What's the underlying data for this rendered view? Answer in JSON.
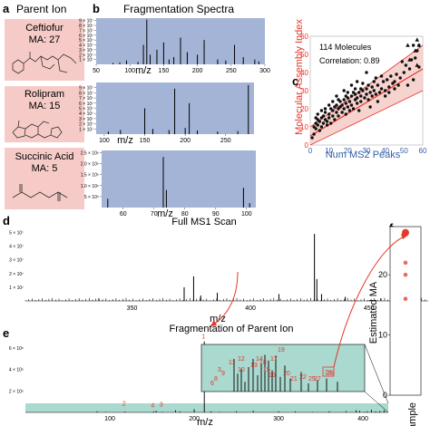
{
  "panel_letters": {
    "a": "a",
    "b": "b",
    "c": "c",
    "d": "d",
    "e": "e",
    "f": "f"
  },
  "panel_a": {
    "title": "Parent Ion",
    "molecules": [
      {
        "name": "Ceftiofur",
        "ma": "MA: 27"
      },
      {
        "name": "Rolipram",
        "ma": "MA: 15"
      },
      {
        "name": "Succinic Acid",
        "ma": "MA: 5"
      }
    ]
  },
  "panel_b": {
    "title": "Fragmentation Spectra",
    "xlabel": "m/z",
    "charts": [
      {
        "id": "ceftiofur",
        "yticks": [
          "1 × 10⁷",
          "2 × 10⁷",
          "3 × 10⁷",
          "4 × 10⁷",
          "5 × 10⁷",
          "6 × 10⁷",
          "7 × 10⁷",
          "8 × 10⁷",
          "9 × 10⁷"
        ],
        "xticks": [
          "50",
          "100",
          "150",
          "200",
          "250",
          "300"
        ]
      },
      {
        "id": "rolipram",
        "yticks": [
          "1 × 10⁷",
          "2 × 10⁷",
          "3 × 10⁷",
          "4 × 10⁷",
          "5 × 10⁷",
          "6 × 10⁷",
          "7 × 10⁷",
          "8 × 10⁷",
          "9 × 10⁷"
        ],
        "xticks": [
          "100",
          "150",
          "200",
          "250"
        ]
      },
      {
        "id": "succinic",
        "yticks": [
          "5 × 10⁵",
          "1.0 × 10⁶",
          "1.5 × 10⁶",
          "2.0 × 10⁶",
          "2.5 × 10⁶"
        ],
        "xticks": [
          "60",
          "70",
          "80",
          "90",
          "100"
        ]
      }
    ]
  },
  "panel_c": {
    "annotation_count": "114 Molecules",
    "annotation_corr": "Correlation:  0.89",
    "xticks": [
      "0",
      "10",
      "20",
      "30",
      "40",
      "50",
      "60"
    ],
    "yticks": [
      "0",
      "10",
      "20",
      "30",
      "40",
      "50",
      "60"
    ]
  },
  "panel_d": {
    "title": "Full MS1 Scan",
    "xlabel": "m/z",
    "yticks": [
      "1 × 10⁷",
      "2 × 10⁷",
      "3 × 10⁷",
      "4 × 10⁷",
      "5 × 10⁷"
    ],
    "xticks": [
      "350",
      "400",
      "450"
    ]
  },
  "panel_e": {
    "title": "Fragmentation of Parent Ion",
    "xlabel": "m/z",
    "yticks": [
      "2 × 10⁵",
      "4 × 10⁵",
      "6 × 10⁵"
    ],
    "xticks": [
      "100",
      "200",
      "300",
      "400"
    ]
  },
  "panel_f": {
    "ylabel": "Estimated MA",
    "xlabel": "Sample",
    "yticks": [
      "0",
      "10",
      "20"
    ]
  },
  "colors": {
    "spectrum_bg": "#a4b4d6",
    "accent_red": "#e8362a",
    "pink_box": "#f6cbc7",
    "teal_band": "#a9d9cf"
  },
  "chart_data": [
    {
      "type": "bar",
      "name": "Ceftiofur fragmentation spectrum",
      "xlim": [
        50,
        300
      ],
      "x": [
        75,
        85,
        95,
        112,
        120,
        125,
        130,
        140,
        150,
        158,
        165,
        175,
        185,
        200,
        210,
        230,
        242,
        255,
        268,
        285,
        291
      ],
      "values": [
        0.3,
        0.4,
        0.8,
        0.5,
        4.0,
        9.2,
        2.0,
        3.0,
        4.5,
        1.0,
        1.5,
        5.5,
        2.5,
        2.0,
        5.0,
        1.0,
        0.8,
        4.0,
        1.5,
        1.0,
        0.6
      ]
    },
    {
      "type": "bar",
      "name": "Rolipram fragmentation spectrum",
      "xlim": [
        90,
        285
      ],
      "x": [
        105,
        120,
        150,
        160,
        180,
        187,
        200,
        205,
        215,
        240,
        265,
        278
      ],
      "values": [
        0.5,
        0.8,
        5.0,
        1.0,
        0.8,
        8.8,
        1.2,
        6.0,
        0.7,
        0.5,
        0.6,
        9.5
      ]
    },
    {
      "type": "bar",
      "name": "Succinic acid fragmentation spectrum",
      "xlim": [
        53,
        103
      ],
      "x": [
        55,
        73,
        74,
        99,
        101
      ],
      "values": [
        0.4,
        2.3,
        0.8,
        0.9,
        0.2
      ]
    },
    {
      "type": "scatter",
      "name": "Molecular Assembly Index vs Num MS2 Peaks",
      "xlabel": "Num MS2 Peaks",
      "ylabel": "Molecular Assembly Index",
      "xlim": [
        0,
        60
      ],
      "ylim": [
        0,
        60
      ],
      "points": [
        [
          1,
          4
        ],
        [
          2,
          6
        ],
        [
          2,
          10
        ],
        [
          3,
          9
        ],
        [
          3,
          12
        ],
        [
          4,
          11
        ],
        [
          4,
          14
        ],
        [
          5,
          8
        ],
        [
          5,
          13
        ],
        [
          6,
          10
        ],
        [
          6,
          15
        ],
        [
          7,
          12
        ],
        [
          7,
          16
        ],
        [
          8,
          14
        ],
        [
          8,
          18
        ],
        [
          9,
          11
        ],
        [
          9,
          13
        ],
        [
          10,
          15
        ],
        [
          10,
          17
        ],
        [
          11,
          12
        ],
        [
          11,
          20
        ],
        [
          12,
          16
        ],
        [
          12,
          19
        ],
        [
          13,
          14
        ],
        [
          13,
          21
        ],
        [
          14,
          18
        ],
        [
          14,
          22
        ],
        [
          15,
          16
        ],
        [
          15,
          20
        ],
        [
          16,
          24
        ],
        [
          17,
          18
        ],
        [
          17,
          22
        ],
        [
          18,
          20
        ],
        [
          18,
          25
        ],
        [
          19,
          17
        ],
        [
          19,
          23
        ],
        [
          20,
          21
        ],
        [
          20,
          26
        ],
        [
          21,
          19
        ],
        [
          21,
          24
        ],
        [
          22,
          22
        ],
        [
          22,
          27
        ],
        [
          23,
          20
        ],
        [
          24,
          25
        ],
        [
          24,
          28
        ],
        [
          25,
          23
        ],
        [
          25,
          26
        ],
        [
          26,
          29
        ],
        [
          27,
          24
        ],
        [
          27,
          27
        ],
        [
          28,
          30
        ],
        [
          29,
          26
        ],
        [
          30,
          28
        ],
        [
          30,
          31
        ],
        [
          31,
          25
        ],
        [
          32,
          29
        ],
        [
          33,
          27
        ],
        [
          33,
          32
        ],
        [
          34,
          30
        ],
        [
          35,
          28
        ],
        [
          36,
          33
        ],
        [
          37,
          29
        ],
        [
          38,
          31
        ],
        [
          39,
          35
        ],
        [
          40,
          30
        ],
        [
          41,
          36
        ],
        [
          42,
          32
        ],
        [
          43,
          38
        ],
        [
          44,
          34
        ],
        [
          45,
          35
        ],
        [
          46,
          39
        ],
        [
          48,
          37
        ],
        [
          50,
          40
        ],
        [
          52,
          33
        ],
        [
          55,
          36
        ],
        [
          58,
          43
        ],
        [
          54,
          47
        ],
        [
          56,
          48
        ],
        [
          57,
          52
        ],
        [
          55,
          55
        ],
        [
          58,
          55
        ],
        [
          49,
          46
        ],
        [
          30,
          40
        ],
        [
          22,
          33
        ],
        [
          25,
          35
        ],
        [
          18,
          30
        ],
        [
          14,
          27
        ],
        [
          12,
          24
        ],
        [
          16,
          21
        ],
        [
          26,
          19
        ],
        [
          32,
          21
        ],
        [
          36,
          24
        ],
        [
          40,
          27
        ],
        [
          42,
          29
        ],
        [
          45,
          31
        ],
        [
          47,
          33
        ],
        [
          51,
          44
        ],
        [
          53,
          42
        ],
        [
          38,
          38
        ],
        [
          34,
          35
        ],
        [
          28,
          34
        ],
        [
          24,
          31
        ],
        [
          20,
          29
        ],
        [
          10,
          22
        ],
        [
          8,
          20
        ],
        [
          6,
          19
        ],
        [
          4,
          17
        ],
        [
          3,
          15
        ],
        [
          15,
          25
        ],
        [
          19,
          27
        ],
        [
          23,
          29
        ],
        [
          27,
          31
        ],
        [
          31,
          33
        ],
        [
          35,
          37
        ]
      ],
      "triangles": [
        [
          52,
          55
        ],
        [
          56,
          52
        ],
        [
          58,
          55
        ],
        [
          53,
          47
        ],
        [
          57,
          44
        ],
        [
          57,
          58
        ]
      ],
      "fit": {
        "x": [
          0,
          60
        ],
        "y": [
          5,
          42
        ]
      }
    },
    {
      "type": "bar",
      "name": "Full MS1 Scan",
      "xlabel": "m/z",
      "xlim": [
        305,
        475
      ],
      "x": [
        336,
        372,
        376,
        379,
        386,
        412,
        427,
        428,
        430,
        440,
        455
      ],
      "values": [
        0.2,
        1.0,
        1.8,
        0.4,
        0.6,
        0.5,
        4.9,
        1.6,
        0.5,
        0.3,
        0.2
      ]
    },
    {
      "type": "bar",
      "name": "Fragmentation of Parent Ion",
      "xlabel": "m/z",
      "xlim": [
        0,
        430
      ],
      "x": [
        85,
        95,
        118,
        152,
        155,
        162,
        178,
        183,
        200,
        212,
        220,
        230,
        250,
        270,
        300,
        320,
        340,
        360,
        380,
        392,
        396,
        402,
        405,
        410,
        415,
        420,
        425
      ],
      "values": [
        0.1,
        0.05,
        0.08,
        0.1,
        0.15,
        0.05,
        0.2,
        0.1,
        0.3,
        6.6,
        0.1,
        0.05,
        0.1,
        0.15,
        0.1,
        0.1,
        0.05,
        0.1,
        0.12,
        0.2,
        0.15,
        0.05,
        0.1,
        0.25,
        0.1,
        0.12,
        0.2
      ]
    },
    {
      "type": "scatter",
      "name": "Estimated MA",
      "ylabel": "Estimated MA",
      "xlabel": "Sample",
      "ylim": [
        0,
        28
      ],
      "values": [
        27,
        22,
        20,
        16
      ]
    }
  ],
  "inset_labels": [
    "19",
    "8",
    "6",
    "3",
    "10",
    "13",
    "15",
    "16",
    "18",
    "20",
    "17",
    "21",
    "22",
    "25",
    "27",
    "28",
    "11",
    "12",
    "14",
    "9"
  ],
  "main_peak_labels": [
    "1",
    "2",
    "3",
    "4"
  ]
}
